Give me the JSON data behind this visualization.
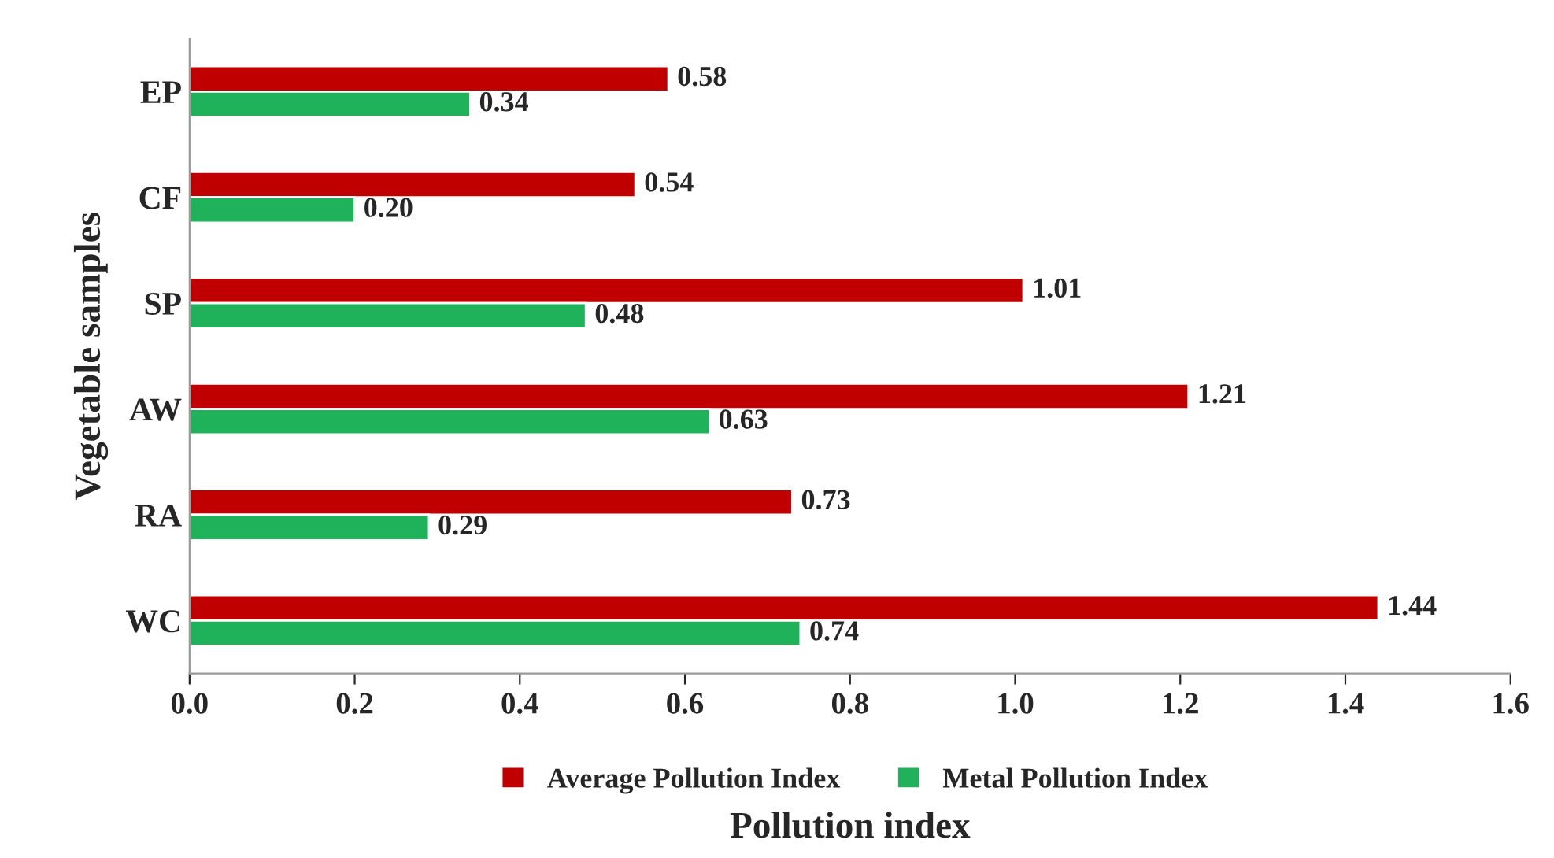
{
  "chart_data": {
    "type": "bar",
    "orientation": "horizontal",
    "xlabel": "Pollution index",
    "ylabel": "Vegetable samples",
    "categories": [
      "EP",
      "CF",
      "SP",
      "AW",
      "RA",
      "WC"
    ],
    "series": [
      {
        "name": "Average Pollution Index",
        "color": "#c00000",
        "values": [
          0.58,
          0.54,
          1.01,
          1.21,
          0.73,
          1.44
        ],
        "value_labels": [
          "0.58",
          "0.54",
          "1.01",
          "1.21",
          "0.73",
          "1.44"
        ]
      },
      {
        "name": "Metal Pollution Index",
        "color": "#1fb25a",
        "values": [
          0.34,
          0.2,
          0.48,
          0.63,
          0.29,
          0.74
        ],
        "value_labels": [
          "0.34",
          "0.20",
          "0.48",
          "0.63",
          "0.29",
          "0.74"
        ]
      }
    ],
    "xlim": [
      0,
      1.6
    ],
    "xticks": [
      {
        "value": 0,
        "label": "0.0"
      },
      {
        "value": 0.2,
        "label": "0.2"
      },
      {
        "value": 0.4,
        "label": "0.4"
      },
      {
        "value": 0.6,
        "label": "0.6"
      },
      {
        "value": 0.8,
        "label": "0.8"
      },
      {
        "value": 1.0,
        "label": "1.0"
      },
      {
        "value": 1.2,
        "label": "1.2"
      },
      {
        "value": 1.4,
        "label": "1.4"
      },
      {
        "value": 1.6,
        "label": "1.6"
      }
    ],
    "grid": false,
    "legend": "bottom"
  }
}
